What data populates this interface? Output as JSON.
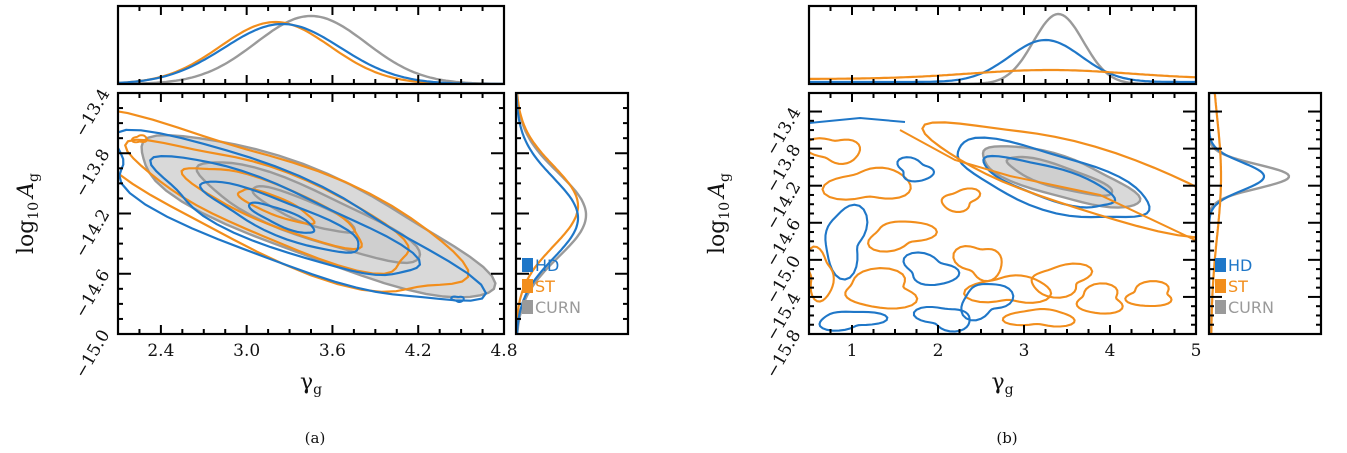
{
  "colors": {
    "HD": "#1f77c8",
    "ST": "#f28e1c",
    "CURN": "#9a9a9a",
    "CURN_fill": "#d9d9d9"
  },
  "chart_data": [
    {
      "type": "contour",
      "panel": "(a)",
      "xlabel": "γg",
      "ylabel": "log10 Ag",
      "xlim": [
        2.1,
        4.8
      ],
      "ylim": [
        -15.0,
        -13.4
      ],
      "xticks": [
        "2.4",
        "3.0",
        "3.6",
        "4.2",
        "4.8"
      ],
      "yticks": [
        "−13.4",
        "−13.8",
        "−14.2",
        "−14.6",
        "−15.0"
      ],
      "legend": [
        "HD",
        "ST",
        "CURN"
      ],
      "legend_position": "right-marginal bottom",
      "series": [
        {
          "name": "HD",
          "gamma_peak": 3.25,
          "log10A_peak": -14.23,
          "correlation": "negative"
        },
        {
          "name": "ST",
          "gamma_peak": 3.2,
          "log10A_peak": -14.15,
          "correlation": "negative"
        },
        {
          "name": "CURN",
          "gamma_peak": 3.45,
          "log10A_peak": -14.21,
          "correlation": "negative"
        }
      ]
    },
    {
      "type": "contour",
      "panel": "(b)",
      "xlabel": "γg",
      "ylabel": "log10 Ag",
      "xlim": [
        0.5,
        5.0
      ],
      "ylim": [
        -15.8,
        -13.2
      ],
      "xticks": [
        "1",
        "2",
        "3",
        "4",
        "5"
      ],
      "yticks": [
        "−13.4",
        "−13.8",
        "−14.2",
        "−14.6",
        "−15.0",
        "−15.4",
        "−15.8"
      ],
      "legend": [
        "HD",
        "ST",
        "CURN"
      ],
      "legend_position": "right-marginal bottom",
      "series": [
        {
          "name": "HD",
          "gamma_peak": 3.25,
          "log10A_peak": -14.1
        },
        {
          "name": "ST",
          "gamma_peak": 3.3,
          "log10A_peak": -14.1
        },
        {
          "name": "CURN",
          "gamma_peak": 3.4,
          "log10A_peak": -14.1
        }
      ]
    }
  ],
  "captions": [
    "(a)",
    "(b)"
  ],
  "legend_labels": [
    "HD",
    "ST",
    "CURN"
  ]
}
